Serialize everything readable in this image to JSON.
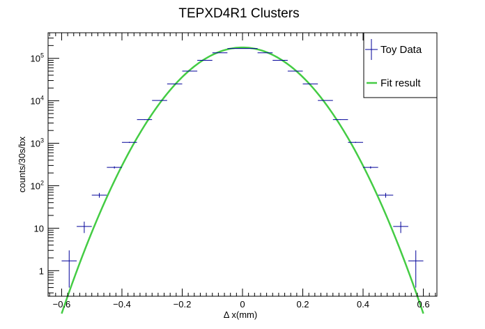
{
  "chart_data": {
    "type": "scatter",
    "title": "TEPXD4R1 Clusters",
    "xlabel": "Δ x(mm)",
    "ylabel": "counts/30s/bx",
    "xlim": [
      -0.645,
      0.645
    ],
    "ylim": [
      0.25,
      400000
    ],
    "yscale": "log",
    "grid": false,
    "legend_position": "top-right",
    "x_ticks": [
      {
        "value": -0.6,
        "label": "−0.6"
      },
      {
        "value": -0.4,
        "label": "−0.4"
      },
      {
        "value": -0.2,
        "label": "−0.2"
      },
      {
        "value": 0,
        "label": "0"
      },
      {
        "value": 0.2,
        "label": "0.2"
      },
      {
        "value": 0.4,
        "label": "0.4"
      },
      {
        "value": 0.6,
        "label": "0.6"
      }
    ],
    "y_ticks": [
      {
        "value": 1,
        "base": "1",
        "exp": ""
      },
      {
        "value": 10,
        "base": "10",
        "exp": ""
      },
      {
        "value": 100,
        "base": "10",
        "exp": "2"
      },
      {
        "value": 1000,
        "base": "10",
        "exp": "3"
      },
      {
        "value": 10000,
        "base": "10",
        "exp": "4"
      },
      {
        "value": 100000,
        "base": "10",
        "exp": "5"
      }
    ],
    "bin_half_width": 0.025,
    "series": [
      {
        "name": "Toy Data",
        "color": "#000099",
        "x": [
          -0.575,
          -0.525,
          -0.475,
          -0.425,
          -0.375,
          -0.325,
          -0.275,
          -0.225,
          -0.175,
          -0.125,
          -0.075,
          -0.025,
          0.025,
          0.075,
          0.125,
          0.175,
          0.225,
          0.275,
          0.325,
          0.375,
          0.425,
          0.475,
          0.525,
          0.575
        ],
        "y": [
          1.7,
          11,
          60,
          270,
          1050,
          3600,
          10200,
          25000,
          50000,
          90000,
          135000,
          170000,
          170000,
          135000,
          90000,
          50000,
          25000,
          10200,
          3600,
          1050,
          270,
          60,
          11,
          1.7
        ],
        "yerr": [
          1.3,
          3.3,
          7.7,
          16,
          32,
          60,
          100,
          158,
          224,
          300,
          367,
          412,
          412,
          367,
          300,
          224,
          158,
          100,
          60,
          32,
          16,
          7.7,
          3.3,
          1.3
        ]
      },
      {
        "name": "Fit result",
        "color": "#44cc44",
        "fit": {
          "amplitude": 180000,
          "mean": 0,
          "sigma": 0.1117,
          "x_range": [
            -0.6,
            0.6
          ]
        }
      }
    ]
  }
}
